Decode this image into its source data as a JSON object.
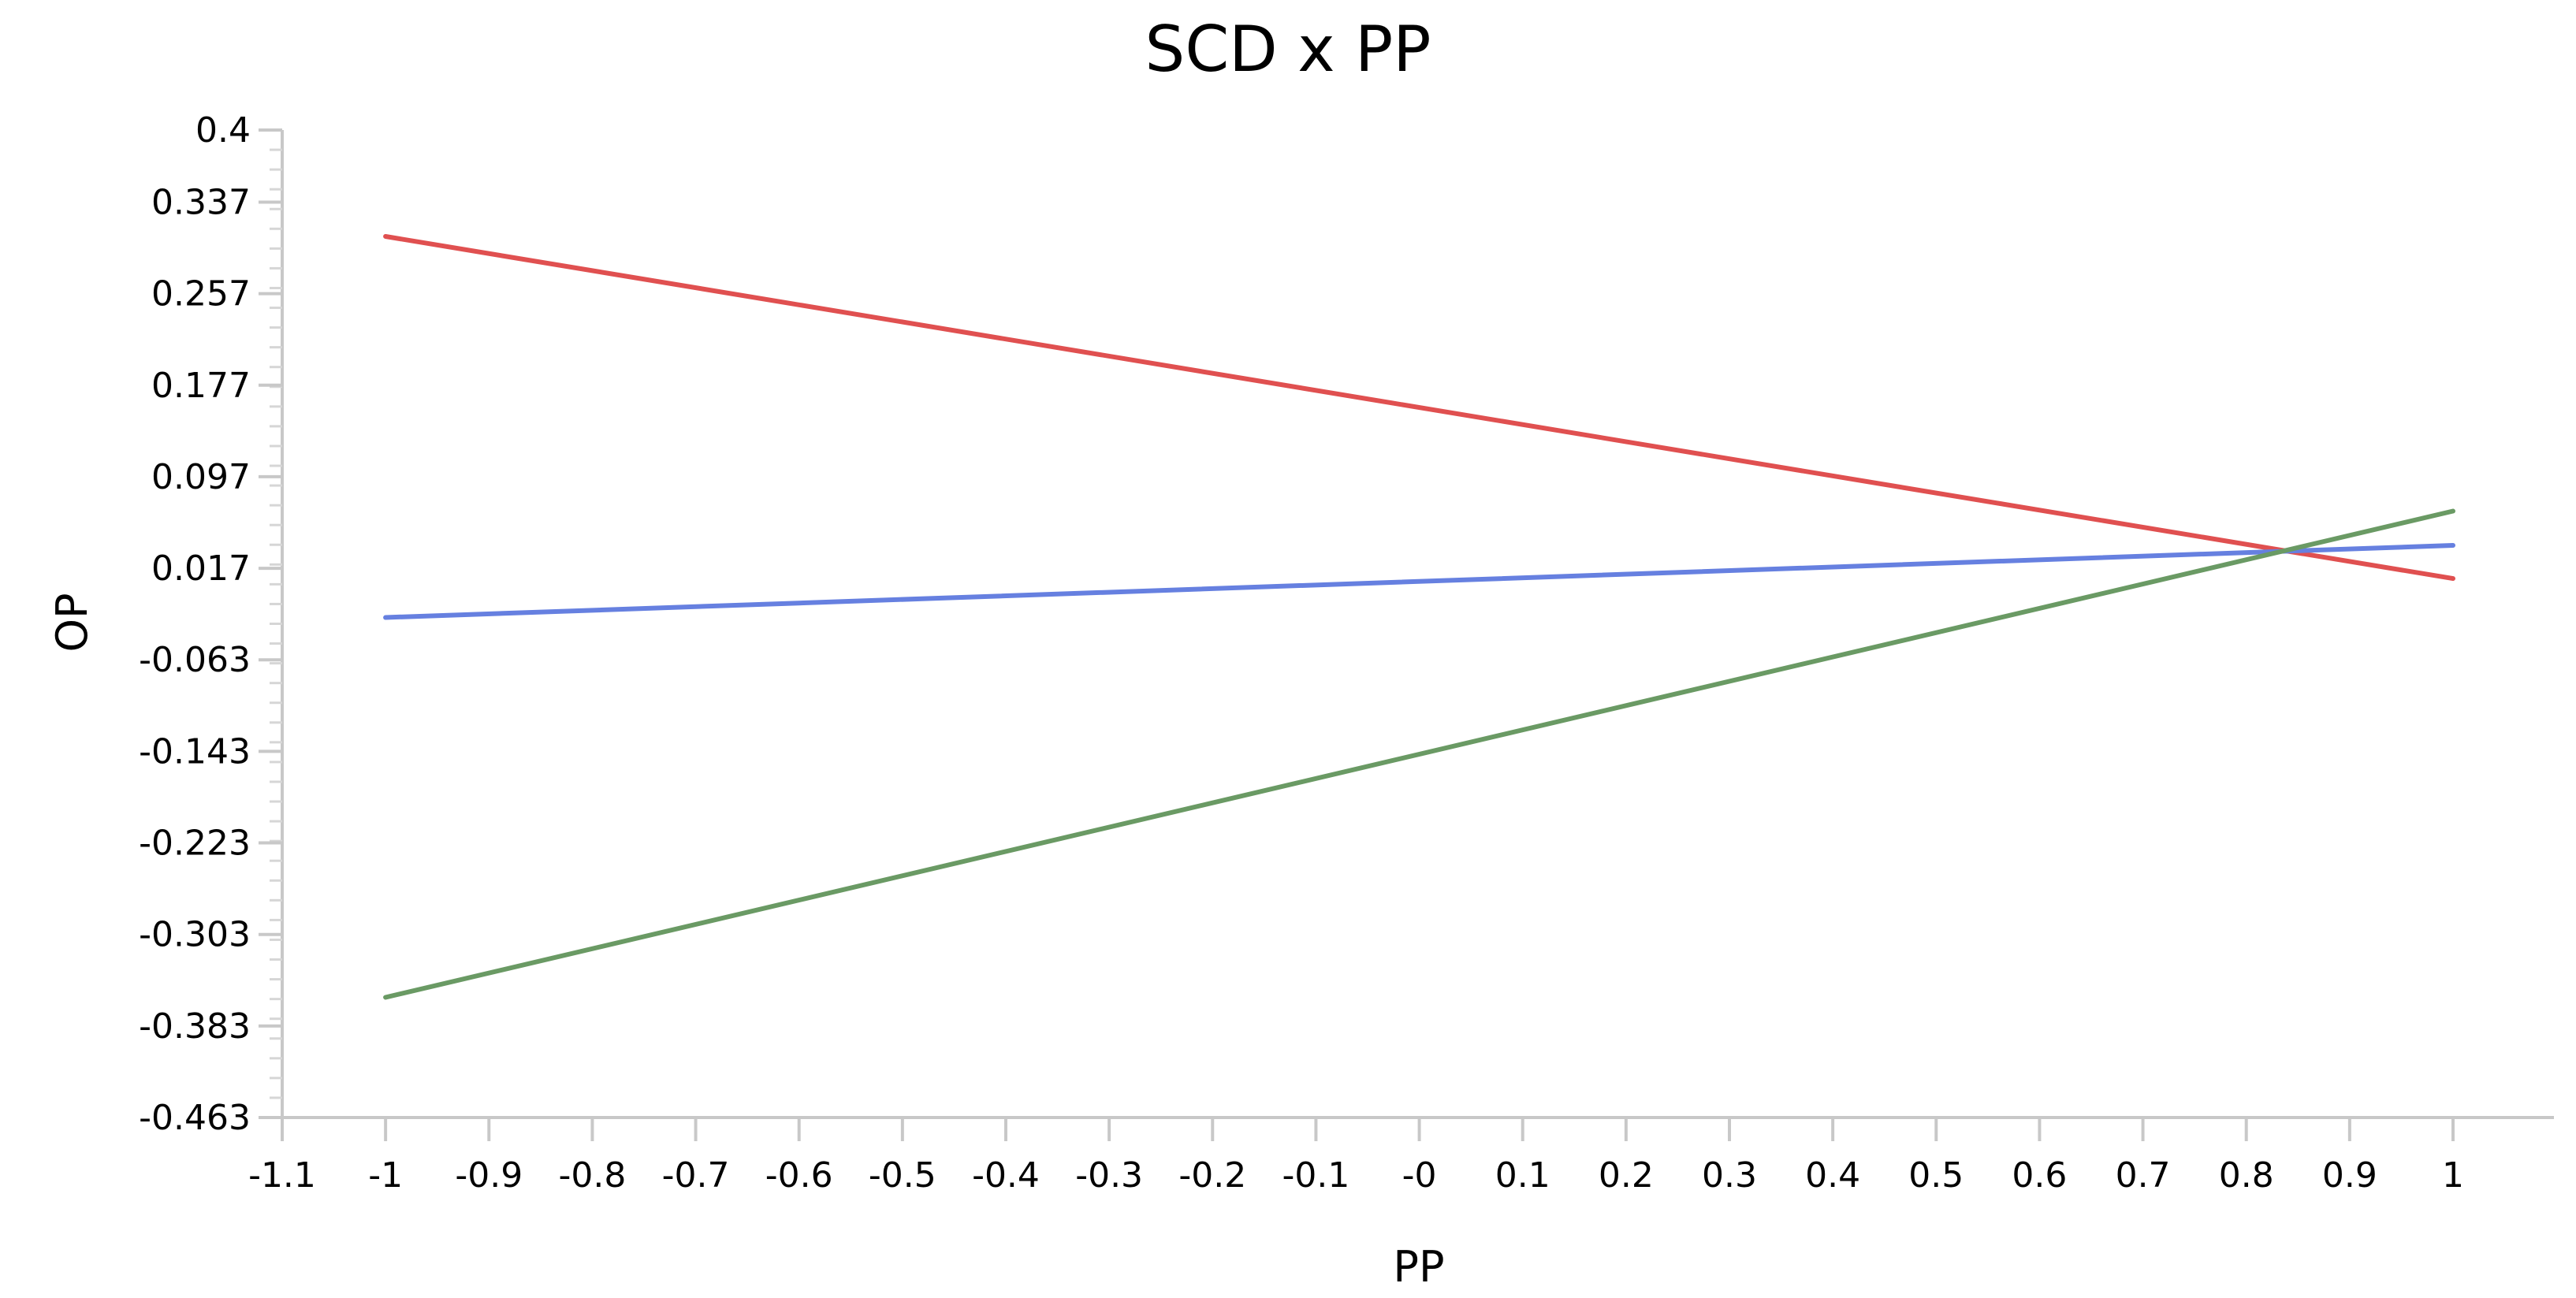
{
  "chart_data": {
    "type": "line",
    "title": "SCD x PP",
    "xlabel": "PP",
    "ylabel": "OP",
    "xlim": [
      -1.1,
      1.1
    ],
    "ylim": [
      -0.463,
      0.4
    ],
    "x_ticks": [
      "-1.1",
      "-1",
      "-0.9",
      "-0.8",
      "-0.7",
      "-0.6",
      "-0.5",
      "-0.4",
      "-0.3",
      "-0.2",
      "-0.1",
      "-0",
      "0.1",
      "0.2",
      "0.3",
      "0.4",
      "0.5",
      "0.6",
      "0.7",
      "0.8",
      "0.9",
      "1"
    ],
    "x_tick_values": [
      -1.1,
      -1.0,
      -0.9,
      -0.8,
      -0.7,
      -0.6,
      -0.5,
      -0.4,
      -0.3,
      -0.2,
      -0.1,
      0.0,
      0.1,
      0.2,
      0.3,
      0.4,
      0.5,
      0.6,
      0.7,
      0.8,
      0.9,
      1.0
    ],
    "y_ticks": [
      "0.4",
      "0.337",
      "0.257",
      "0.177",
      "0.097",
      "0.017",
      "-0.063",
      "-0.143",
      "-0.223",
      "-0.303",
      "-0.383",
      "-0.463"
    ],
    "y_tick_values": [
      0.4,
      0.337,
      0.257,
      0.177,
      0.097,
      0.017,
      -0.063,
      -0.143,
      -0.223,
      -0.303,
      -0.383,
      -0.463
    ],
    "grid": false,
    "legend": "none",
    "series": [
      {
        "color": "#e05050",
        "x": [
          -1,
          1
        ],
        "y": [
          0.307,
          0.008
        ]
      },
      {
        "color": "#6680e0",
        "x": [
          -1,
          1
        ],
        "y": [
          -0.026,
          0.037
        ]
      },
      {
        "color": "#6a9a64",
        "x": [
          -1,
          1
        ],
        "y": [
          -0.358,
          0.067
        ]
      }
    ]
  }
}
